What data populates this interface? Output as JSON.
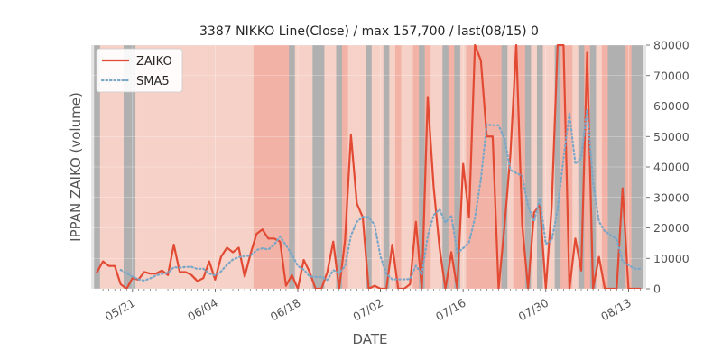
{
  "chart_data": {
    "type": "line",
    "title": "3387 NIKKO Line(Close) / max 157,700 / last(08/15) 0",
    "xlabel": "DATE",
    "ylabel": "IPPAN ZAIKO (volume)",
    "ylim": [
      0,
      80000
    ],
    "y_ticks": [
      0,
      10000,
      20000,
      30000,
      40000,
      50000,
      60000,
      70000,
      80000
    ],
    "y_tick_labels": [
      "0",
      "10000",
      "20000",
      "30000",
      "40000",
      "50000",
      "60000",
      "70000",
      "80000"
    ],
    "y_axis_side": "right",
    "x_range": [
      "2018-05-14",
      "2018-08-16"
    ],
    "x_ticks": [
      "2018-05-21",
      "2018-06-04",
      "2018-06-18",
      "2018-07-02",
      "2018-07-16",
      "2018-07-30",
      "2018-08-13"
    ],
    "x_tick_labels": [
      "05/21",
      "06/04",
      "06/18",
      "07/02",
      "07/16",
      "07/30",
      "08/13"
    ],
    "grid": true,
    "legend_position": "top-left",
    "colors": {
      "zaiko": "#e24a33",
      "sma5": "#7aa7c7",
      "plot_bg": "#e5e5e5",
      "band_gray": "#b0b0b0"
    },
    "dates": [
      "2018-05-15",
      "2018-05-16",
      "2018-05-17",
      "2018-05-18",
      "2018-05-19",
      "2018-05-20",
      "2018-05-21",
      "2018-05-22",
      "2018-05-23",
      "2018-05-24",
      "2018-05-25",
      "2018-05-26",
      "2018-05-27",
      "2018-05-28",
      "2018-05-29",
      "2018-05-30",
      "2018-05-31",
      "2018-06-01",
      "2018-06-02",
      "2018-06-03",
      "2018-06-04",
      "2018-06-05",
      "2018-06-06",
      "2018-06-07",
      "2018-06-08",
      "2018-06-09",
      "2018-06-10",
      "2018-06-11",
      "2018-06-12",
      "2018-06-13",
      "2018-06-14",
      "2018-06-15",
      "2018-06-16",
      "2018-06-17",
      "2018-06-18",
      "2018-06-19",
      "2018-06-20",
      "2018-06-21",
      "2018-06-22",
      "2018-06-23",
      "2018-06-24",
      "2018-06-25",
      "2018-06-26",
      "2018-06-27",
      "2018-06-28",
      "2018-06-29",
      "2018-06-30",
      "2018-07-01",
      "2018-07-02",
      "2018-07-03",
      "2018-07-04",
      "2018-07-05",
      "2018-07-06",
      "2018-07-07",
      "2018-07-08",
      "2018-07-09",
      "2018-07-10",
      "2018-07-11",
      "2018-07-12",
      "2018-07-13",
      "2018-07-14",
      "2018-07-15",
      "2018-07-16",
      "2018-07-17",
      "2018-07-18",
      "2018-07-19",
      "2018-07-20",
      "2018-07-21",
      "2018-07-22",
      "2018-07-23",
      "2018-07-24",
      "2018-07-25",
      "2018-07-26",
      "2018-07-27",
      "2018-07-28",
      "2018-07-29",
      "2018-07-30",
      "2018-07-31",
      "2018-08-01",
      "2018-08-02",
      "2018-08-03",
      "2018-08-04",
      "2018-08-05",
      "2018-08-06",
      "2018-08-07",
      "2018-08-08",
      "2018-08-09",
      "2018-08-10",
      "2018-08-11",
      "2018-08-12",
      "2018-08-13",
      "2018-08-14",
      "2018-08-15"
    ],
    "series": [
      {
        "name": "ZAIKO",
        "style": "solid",
        "values": [
          5500,
          9000,
          7500,
          7500,
          1500,
          0,
          3500,
          3000,
          5500,
          5000,
          5000,
          6000,
          4500,
          14500,
          5500,
          5500,
          4500,
          2500,
          3500,
          9000,
          3000,
          10500,
          13500,
          12000,
          13500,
          4000,
          11500,
          18000,
          19500,
          16500,
          16500,
          15500,
          1000,
          4500,
          0,
          9500,
          5500,
          0,
          0,
          5500,
          15500,
          0,
          16000,
          50500,
          28000,
          23500,
          0,
          1000,
          0,
          0,
          14500,
          0,
          0,
          1500,
          22000,
          0,
          63000,
          33500,
          13500,
          0,
          12000,
          0,
          41000,
          23500,
          80000,
          75000,
          50000,
          50000,
          0,
          20500,
          44000,
          80000,
          21000,
          0,
          25000,
          27500,
          0,
          27000,
          80000,
          80000,
          0,
          16500,
          6000,
          77500,
          0,
          10500,
          0,
          0,
          0,
          33000,
          0,
          0,
          0
        ]
      },
      {
        "name": "SMA5",
        "style": "dotted",
        "values": [
          null,
          null,
          null,
          null,
          6200,
          5100,
          4000,
          3100,
          2700,
          3400,
          4400,
          4900,
          5200,
          7100,
          6900,
          7200,
          7200,
          6500,
          6600,
          5000,
          4400,
          5700,
          7900,
          9600,
          10400,
          10700,
          10900,
          12700,
          13300,
          12900,
          14500,
          17200,
          14300,
          11200,
          7500,
          6300,
          4100,
          3900,
          3900,
          2900,
          6100,
          5200,
          7400,
          17500,
          22000,
          23600,
          23600,
          21000,
          10600,
          4900,
          3100,
          3100,
          3100,
          3200,
          7600,
          4700,
          17300,
          24200,
          26100,
          21700,
          24100,
          11800,
          13300,
          15300,
          23300,
          35900,
          53900,
          53700,
          53700,
          49300,
          39000,
          38000,
          37100,
          27100,
          22100,
          29700,
          14700,
          15900,
          26000,
          43000,
          57500,
          41000,
          43000,
          59000,
          35000,
          22100,
          18900,
          17600,
          16300,
          9000,
          7800,
          6600,
          6600
        ]
      }
    ],
    "band_shades": [
      "g",
      "p",
      "p",
      "p",
      "p",
      "g",
      "g",
      "p",
      "p",
      "p",
      "p",
      "p",
      "p",
      "p",
      "p",
      "p",
      "p",
      "p",
      "p",
      "p",
      "p",
      "p",
      "p",
      "p",
      "p",
      "p",
      "p",
      "m",
      "m",
      "m",
      "m",
      "m",
      "m",
      "g",
      "p",
      "p",
      "p",
      "g",
      "g",
      "p",
      "p",
      "g",
      "m",
      "p",
      "p",
      "p",
      "g",
      "p",
      "p",
      "g",
      "p",
      "m",
      "p",
      "p",
      "m",
      "g",
      "m",
      "p",
      "p",
      "g",
      "m",
      "g",
      "p",
      "m",
      "m",
      "m",
      "m",
      "m",
      "m",
      "g",
      "p",
      "m",
      "m",
      "g",
      "p",
      "g",
      "p",
      "p",
      "g",
      "m",
      "m",
      "p",
      "g",
      "m",
      "g",
      "p",
      "m",
      "g",
      "g",
      "g",
      "m",
      "g",
      "g"
    ],
    "legend": [
      {
        "label": "ZAIKO",
        "style": "solid"
      },
      {
        "label": "SMA5",
        "style": "dotted"
      }
    ]
  }
}
